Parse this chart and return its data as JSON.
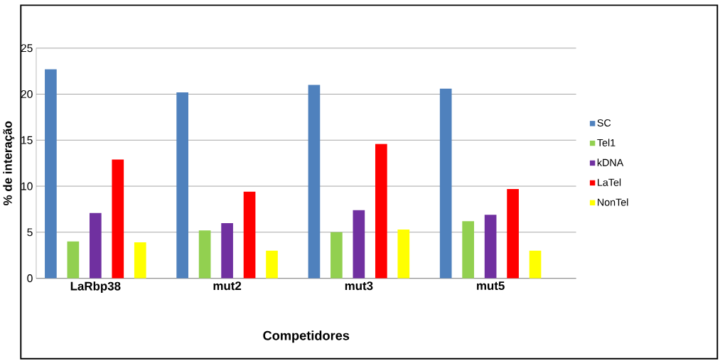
{
  "chart_data": {
    "type": "bar",
    "xlabel": "Competidores",
    "ylabel": "% de interação",
    "categories": [
      "LaRbp38",
      "mut2",
      "mut3",
      "mut5"
    ],
    "series": [
      {
        "name": "SC",
        "color": "#4f81bd",
        "values": [
          22.7,
          20.2,
          21.0,
          20.6
        ]
      },
      {
        "name": "Tel1",
        "color": "#92d050",
        "values": [
          4.0,
          5.2,
          5.0,
          6.2
        ]
      },
      {
        "name": "kDNA",
        "color": "#7030a0",
        "values": [
          7.1,
          6.0,
          7.4,
          6.9
        ]
      },
      {
        "name": "LaTel",
        "color": "#ff0000",
        "values": [
          12.9,
          9.4,
          14.6,
          9.7
        ]
      },
      {
        "name": "NonTel",
        "color": "#ffff00",
        "values": [
          3.9,
          3.0,
          5.3,
          3.0
        ]
      }
    ],
    "ylim": [
      0,
      25
    ],
    "yticks": [
      0,
      5,
      10,
      15,
      20,
      25
    ],
    "grid": "y",
    "legend": "right"
  }
}
